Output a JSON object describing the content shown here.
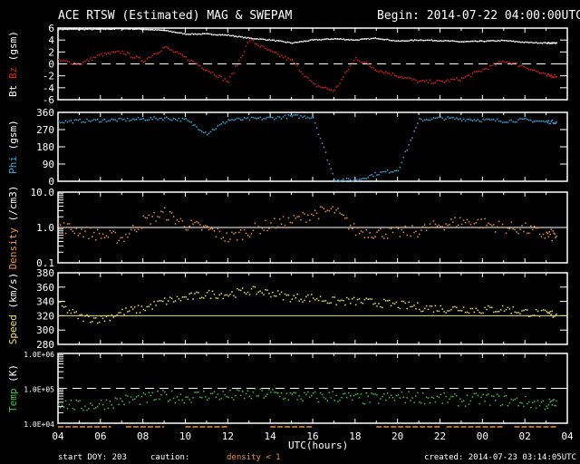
{
  "header": {
    "title": "ACE RTSW (Estimated) MAG & SWEPAM",
    "begin": "Begin: 2014-07-22 04:00:00UTC"
  },
  "footer": {
    "start_doy": "start DOY: 203",
    "caution": "caution:",
    "caution_note": "density < 1",
    "created": "created: 2014-07-23 03:14:05UTC",
    "xlabel": "UTC(hours)"
  },
  "colors": {
    "bt": "#ffffff",
    "bz": "#dd2020",
    "phi": "#33aadd",
    "density": "#e8913a",
    "speed": "#e8e060",
    "temp": "#40c040",
    "axis": "#ffffff"
  },
  "chart_data": [
    {
      "type": "scatter",
      "panel": "mag",
      "ylabel_parts": [
        "Bt",
        "Bz",
        "(gsm)"
      ],
      "ylim": [
        -6,
        6
      ],
      "yticks": [
        "6",
        "4",
        "2",
        "0",
        "-2",
        "-4",
        "-6"
      ],
      "ytick_values": [
        6,
        4,
        2,
        0,
        -2,
        -4,
        -6
      ],
      "reference": {
        "value": 0,
        "style": "dashed"
      },
      "x_hours_from_start": [
        0,
        1,
        2,
        3,
        4,
        5,
        6,
        7,
        8,
        9,
        10,
        11,
        12,
        13,
        14,
        15,
        16,
        17,
        18,
        19,
        20,
        21,
        22,
        23
      ],
      "series": [
        {
          "name": "Bt",
          "values": [
            5.8,
            5.8,
            5.8,
            5.9,
            5.8,
            5.6,
            5.0,
            5.0,
            4.8,
            4.3,
            4.0,
            3.5,
            4.0,
            4.2,
            4.0,
            4.3,
            3.8,
            4.0,
            3.9,
            3.7,
            3.8,
            3.9,
            3.6,
            3.5
          ]
        },
        {
          "name": "Bz",
          "values": [
            0.5,
            0,
            1.5,
            2,
            0.5,
            2.8,
            1,
            -1,
            -3,
            4,
            2,
            0.5,
            -3.5,
            -4.5,
            1,
            -1,
            -2,
            -3,
            -3,
            -2.5,
            -1,
            0.5,
            -0.5,
            -2
          ]
        }
      ]
    },
    {
      "type": "scatter",
      "panel": "phi",
      "ylabel": "Phi (gsm)",
      "ylim": [
        0,
        360
      ],
      "yticks": [
        "360",
        "270",
        "180",
        "90",
        "0"
      ],
      "ytick_values": [
        360,
        270,
        180,
        90,
        0
      ],
      "x_hours_from_start": [
        0,
        1,
        2,
        3,
        4,
        5,
        6,
        7,
        8,
        9,
        10,
        11,
        12,
        13,
        14,
        15,
        16,
        17,
        18,
        19,
        20,
        21,
        22,
        23
      ],
      "series": [
        {
          "name": "Phi",
          "values": [
            310,
            315,
            318,
            320,
            325,
            330,
            320,
            250,
            320,
            325,
            330,
            340,
            335,
            10,
            5,
            40,
            60,
            320,
            330,
            325,
            320,
            315,
            320,
            310
          ]
        }
      ]
    },
    {
      "type": "scatter",
      "panel": "density",
      "ylabel": "Density (/cm3)",
      "yscale": "log",
      "ylim": [
        0.1,
        10
      ],
      "yticks": [
        "10.0",
        "1.0",
        "0.1"
      ],
      "ytick_values": [
        10,
        1,
        0.1
      ],
      "reference": {
        "value": 1,
        "style": "solid"
      },
      "x_hours_from_start": [
        0,
        1,
        2,
        3,
        4,
        5,
        6,
        7,
        8,
        9,
        10,
        11,
        12,
        13,
        14,
        15,
        16,
        17,
        18,
        19,
        20,
        21,
        22,
        23
      ],
      "series": [
        {
          "name": "Density",
          "values": [
            1.1,
            0.8,
            0.6,
            0.5,
            1.5,
            2.5,
            1.2,
            0.9,
            0.5,
            0.8,
            1.2,
            1.5,
            2.5,
            3,
            0.8,
            0.7,
            0.7,
            0.8,
            1.2,
            1.5,
            1.3,
            1.0,
            0.9,
            0.6
          ]
        }
      ]
    },
    {
      "type": "scatter",
      "panel": "speed",
      "ylabel": "Speed (km/s)",
      "ylim": [
        280,
        380
      ],
      "yticks": [
        "380",
        "360",
        "340",
        "320",
        "300",
        "280"
      ],
      "ytick_values": [
        380,
        360,
        340,
        320,
        300,
        280
      ],
      "reference": {
        "value": 320,
        "style": "solid"
      },
      "x_hours_from_start": [
        0,
        1,
        2,
        3,
        4,
        5,
        6,
        7,
        8,
        9,
        10,
        11,
        12,
        13,
        14,
        15,
        16,
        17,
        18,
        19,
        20,
        21,
        22,
        23
      ],
      "series": [
        {
          "name": "Speed",
          "values": [
            335,
            318,
            315,
            325,
            330,
            340,
            345,
            350,
            350,
            355,
            352,
            345,
            345,
            340,
            340,
            338,
            335,
            332,
            330,
            330,
            328,
            330,
            325,
            322
          ]
        }
      ]
    },
    {
      "type": "scatter",
      "panel": "temp",
      "ylabel": "Temp (K)",
      "yscale": "log",
      "ylim": [
        10000,
        1000000
      ],
      "yticks": [
        "1.0E+06",
        "1.0E+05",
        "1.0E+04"
      ],
      "ytick_values": [
        1000000,
        100000,
        10000
      ],
      "reference": {
        "value": 100000,
        "style": "dashed"
      },
      "x_hours_from_start": [
        0,
        1,
        2,
        3,
        4,
        5,
        6,
        7,
        8,
        9,
        10,
        11,
        12,
        13,
        14,
        15,
        16,
        17,
        18,
        19,
        20,
        21,
        22,
        23
      ],
      "series": [
        {
          "name": "Temp",
          "values": [
            40000,
            30000,
            35000,
            45000,
            50000,
            60000,
            55000,
            65000,
            60000,
            65000,
            70000,
            60000,
            55000,
            60000,
            50000,
            50000,
            55000,
            55000,
            50000,
            45000,
            50000,
            45000,
            40000,
            35000
          ]
        }
      ]
    }
  ],
  "x_axis": {
    "tick_labels": [
      "04",
      "06",
      "08",
      "10",
      "12",
      "14",
      "16",
      "18",
      "20",
      "22",
      "00",
      "02",
      "04"
    ],
    "span_hours": 24
  },
  "caution_intervals_hours": [
    [
      0,
      2.5
    ],
    [
      3.2,
      5
    ],
    [
      6,
      8
    ],
    [
      10,
      12
    ],
    [
      15,
      18
    ],
    [
      18.3,
      21
    ],
    [
      21.5,
      23.5
    ]
  ]
}
